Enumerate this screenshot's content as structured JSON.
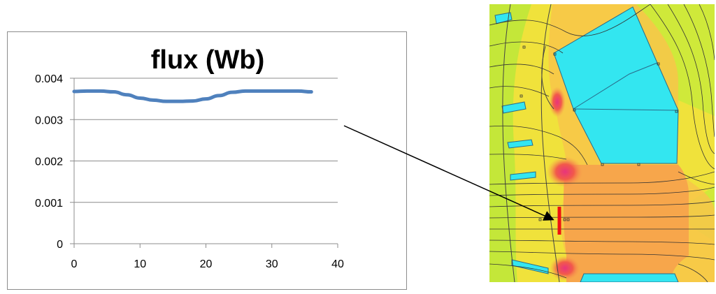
{
  "chart_data": {
    "type": "line",
    "title": "flux (Wb)",
    "xlabel": "",
    "ylabel": "",
    "xlim": [
      0,
      40
    ],
    "ylim": [
      0,
      0.004
    ],
    "x_ticks": [
      0,
      10,
      20,
      30,
      40
    ],
    "y_ticks": [
      "0",
      "0.001",
      "0.002",
      "0.003",
      "0.004"
    ],
    "y_tick_values": [
      0,
      0.001,
      0.002,
      0.003,
      0.004
    ],
    "grid": "horizontal",
    "legend": "none",
    "series": [
      {
        "color": "#4f81bd",
        "x": [
          0,
          2,
          4,
          6,
          8,
          10,
          12,
          14,
          16,
          18,
          20,
          22,
          24,
          26,
          28,
          30,
          32,
          34,
          36
        ],
        "y": [
          0.00368,
          0.00369,
          0.00369,
          0.00367,
          0.0036,
          0.00352,
          0.00347,
          0.00344,
          0.00344,
          0.00345,
          0.0035,
          0.00358,
          0.00366,
          0.00369,
          0.00369,
          0.00369,
          0.00369,
          0.00369,
          0.00367
        ]
      }
    ]
  },
  "fem_view": {
    "description_colors": {
      "background_field": "#ccec33",
      "field_yellow": "#f5e33a",
      "field_orange": "#f7a24c",
      "field_red": "#f25a4a",
      "field_magenta": "#e83a7a",
      "coil_cyan": "#33e8f2",
      "flux_line": "#333333",
      "probe_line": "#ee1111"
    }
  },
  "annotation": {
    "arrow_color": "#000000"
  }
}
